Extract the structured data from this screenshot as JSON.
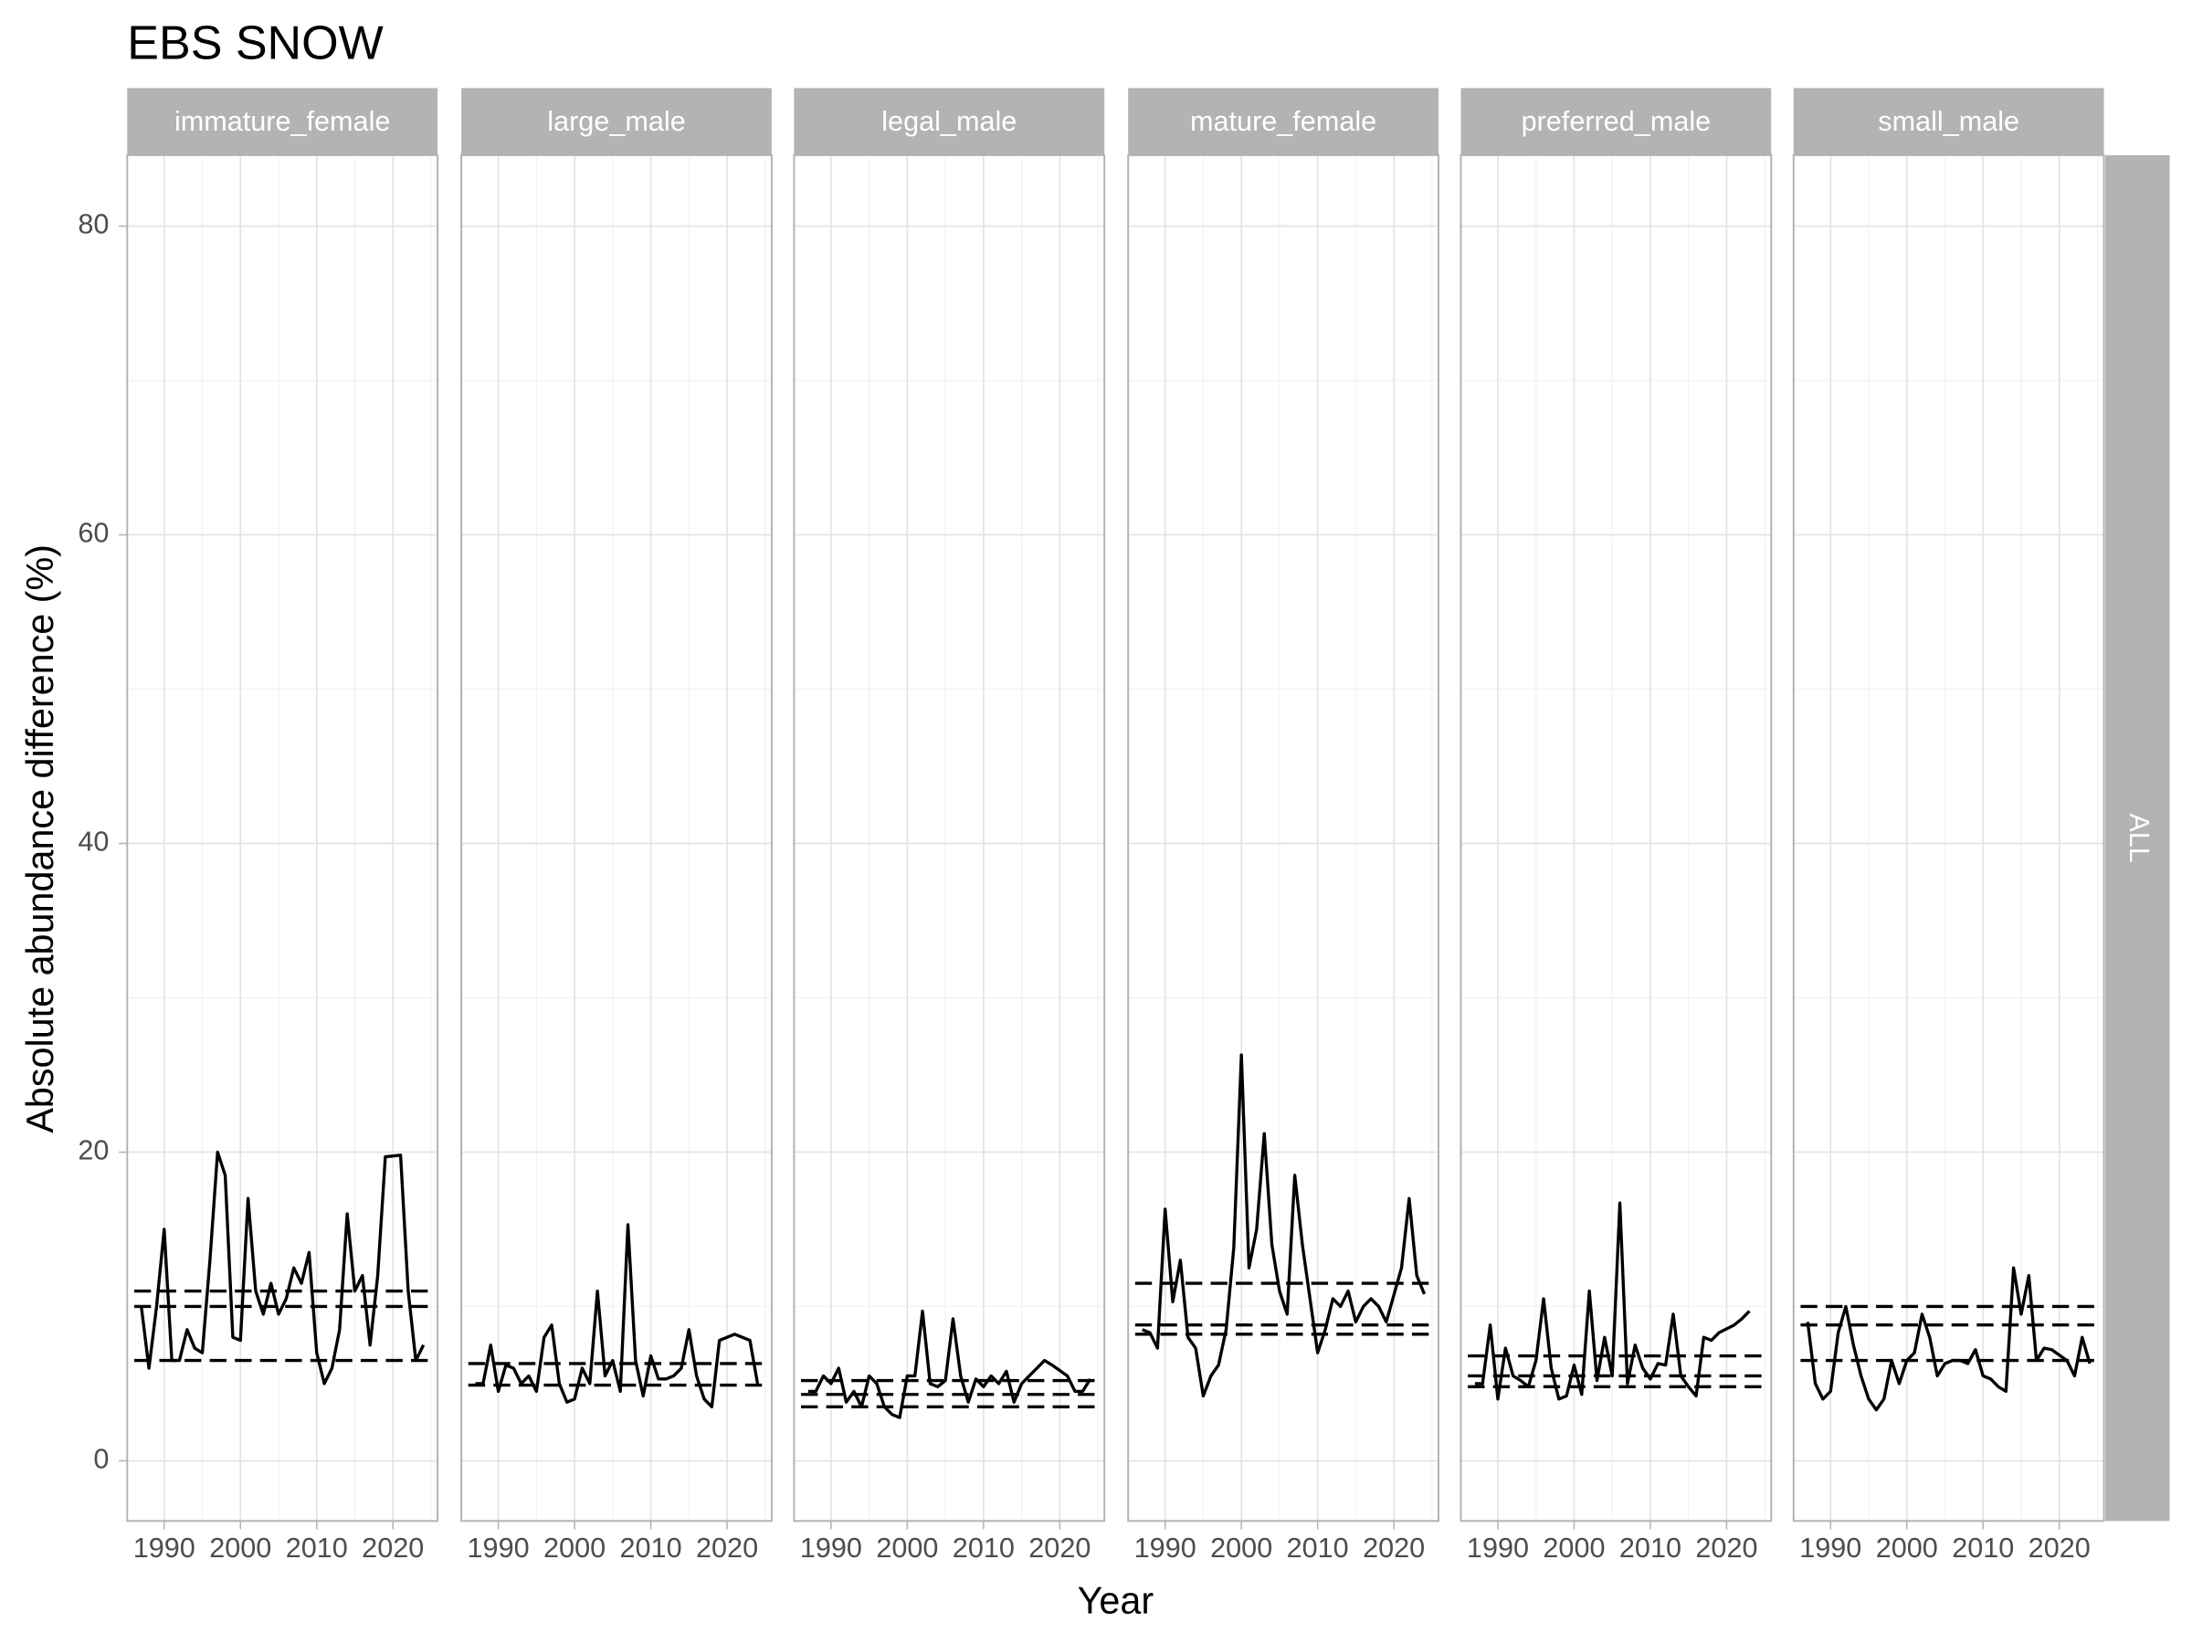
{
  "chart_data": {
    "type": "line",
    "title": "EBS SNOW",
    "x_label": "Year",
    "y_label": "Absolute abundance difference (%)",
    "row_strip": "ALL",
    "color": "#000000",
    "grid": true,
    "x": [
      1987,
      1988,
      1989,
      1990,
      1991,
      1992,
      1993,
      1994,
      1995,
      1996,
      1997,
      1998,
      1999,
      2000,
      2001,
      2002,
      2003,
      2004,
      2005,
      2006,
      2007,
      2008,
      2009,
      2010,
      2011,
      2012,
      2013,
      2014,
      2015,
      2016,
      2017,
      2018,
      2019,
      2021,
      2022,
      2023,
      2024
    ],
    "xlim": [
      1985.15,
      2025.85
    ],
    "xticks": [
      1990,
      2000,
      2010,
      2020
    ],
    "xminor_ticks": [
      1995,
      2005,
      2015,
      2025
    ],
    "ylim": [
      -3.9,
      84.6
    ],
    "yticks": [
      0,
      20,
      40,
      60,
      80
    ],
    "yminor_ticks": [
      10,
      30,
      50,
      70
    ],
    "panels": [
      {
        "title": "immature_female",
        "values": [
          10,
          6,
          10,
          15,
          6.5,
          6.5,
          8.5,
          7.3,
          7,
          13,
          20,
          18.5,
          8,
          7.8,
          17,
          11,
          9.5,
          11.5,
          9.5,
          10.5,
          12.5,
          11.5,
          13.5,
          7,
          5,
          6,
          8.5,
          16,
          11,
          12,
          7.5,
          12,
          19.7,
          19.8,
          11,
          6.5,
          7.5
        ],
        "reference_lines": [
          6.5,
          10,
          11
        ]
      },
      {
        "title": "large_male",
        "values": [
          5,
          5,
          7.5,
          4.5,
          6.2,
          6,
          5,
          5.5,
          4.5,
          8,
          8.8,
          5,
          3.8,
          4,
          6,
          5,
          11,
          5.5,
          6.5,
          4.5,
          15.3,
          6.5,
          4.2,
          6.8,
          5.3,
          5.3,
          5.5,
          6,
          8.5,
          5.5,
          4,
          3.5,
          7.8,
          8.2,
          8,
          7.8,
          5
        ],
        "reference_lines": [
          4.9,
          6.3
        ]
      },
      {
        "title": "legal_male",
        "values": [
          4.5,
          4.5,
          5.5,
          5,
          6,
          3.8,
          4.5,
          3.5,
          5.5,
          5,
          3.5,
          3,
          2.8,
          5.5,
          5.5,
          9.7,
          5,
          4.8,
          5.2,
          9.2,
          5.5,
          3.8,
          5.3,
          4.8,
          5.5,
          5,
          5.8,
          3.8,
          5,
          5.5,
          6,
          6.5,
          6.2,
          5.5,
          4.5,
          4.5,
          5.3
        ],
        "reference_lines": [
          3.5,
          4.3,
          5.2
        ]
      },
      {
        "title": "mature_female",
        "values": [
          8.5,
          8.3,
          7.3,
          16.3,
          10.3,
          13,
          8,
          7.3,
          4.2,
          5.5,
          6.2,
          8.5,
          13.8,
          26.3,
          12.5,
          15,
          21.2,
          14,
          11,
          9.5,
          18.5,
          14,
          10.5,
          7,
          8.5,
          10.5,
          10,
          11,
          9,
          10,
          10.5,
          10,
          9,
          12.5,
          17,
          12,
          10.8
        ],
        "reference_lines": [
          8.2,
          8.8,
          11.5
        ]
      },
      {
        "title": "preferred_male",
        "values": [
          5,
          5,
          8.8,
          4,
          7.3,
          5.5,
          5.2,
          4.8,
          6.5,
          10.5,
          6,
          4,
          4.2,
          6.2,
          4.3,
          11,
          5.2,
          8,
          5.5,
          16.7,
          5,
          7.5,
          6,
          5.3,
          6.3,
          6.2,
          9.5,
          5.5,
          4.8,
          4.2,
          8,
          7.8,
          8.3,
          8.8,
          9.2,
          9.7,
          null
        ],
        "reference_lines": [
          4.8,
          5.5,
          6.8
        ]
      },
      {
        "title": "small_male",
        "values": [
          9,
          5,
          4,
          4.5,
          8.3,
          10,
          7.5,
          5.5,
          4,
          3.3,
          4,
          6.5,
          5,
          6.5,
          7,
          9.5,
          8,
          5.5,
          6.3,
          6.5,
          6.5,
          6.3,
          7.2,
          5.5,
          5.3,
          4.8,
          4.5,
          12.5,
          9.5,
          12,
          6.5,
          7.3,
          7.2,
          6.5,
          5.5,
          8,
          6.3
        ],
        "reference_lines": [
          6.5,
          8.8,
          10
        ]
      }
    ]
  }
}
